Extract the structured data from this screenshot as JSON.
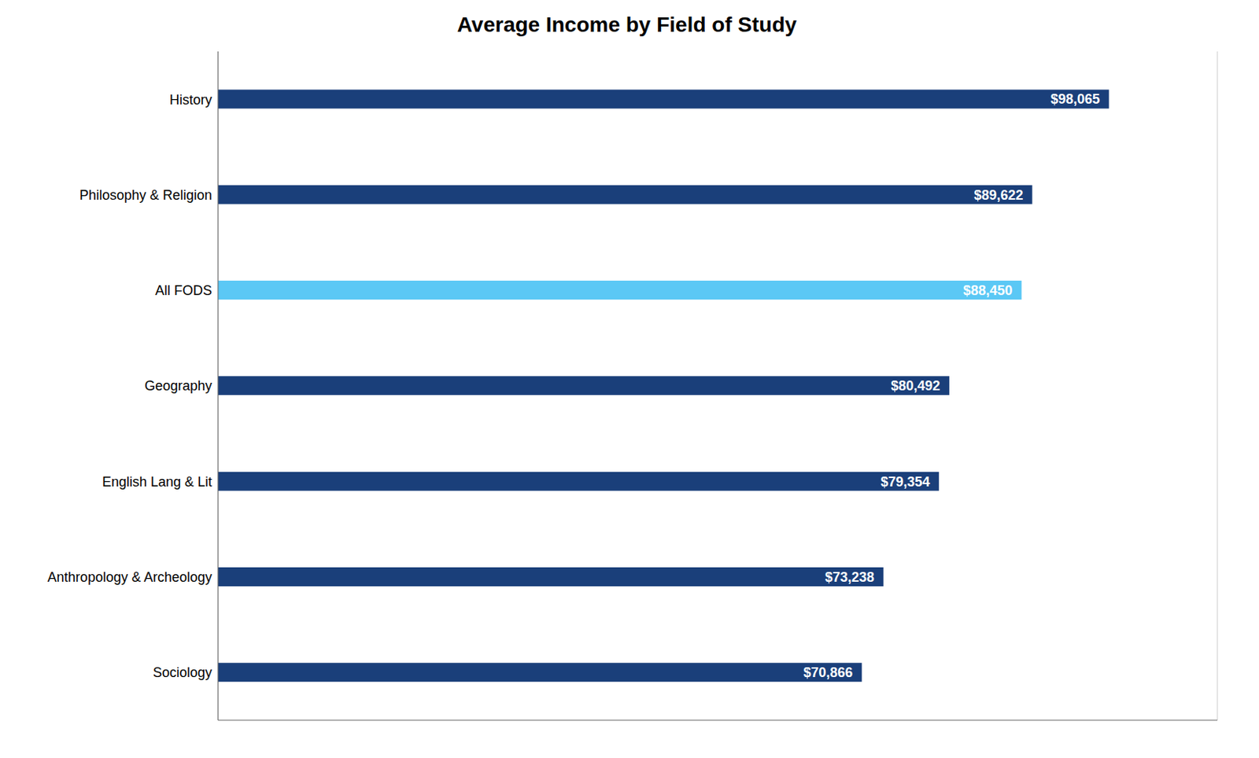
{
  "chart_data": {
    "type": "bar",
    "title": "Average Income by Field of Study",
    "orientation": "horizontal",
    "categories": [
      "Sociology",
      "Anthropology & Archeology",
      "English Lang & Lit",
      "Geography",
      "All FODS",
      "Philosophy & Religion",
      "History"
    ],
    "values": [
      70866,
      73238,
      79354,
      80492,
      88450,
      89622,
      98065
    ],
    "value_labels": [
      "$70,866",
      "$73,238",
      "$79,354",
      "$80,492",
      "$88,450",
      "$89,622",
      "$98,065"
    ],
    "data_labels": true,
    "colors": [
      "#1a3f7a",
      "#1a3f7a",
      "#1a3f7a",
      "#1a3f7a",
      "#5bc8f5",
      "#1a3f7a",
      "#1a3f7a"
    ],
    "xlim": [
      0,
      110000
    ],
    "xticks": [
      20000,
      40000,
      60000,
      80000,
      100000
    ],
    "grid": true,
    "tick_labels": "y"
  }
}
